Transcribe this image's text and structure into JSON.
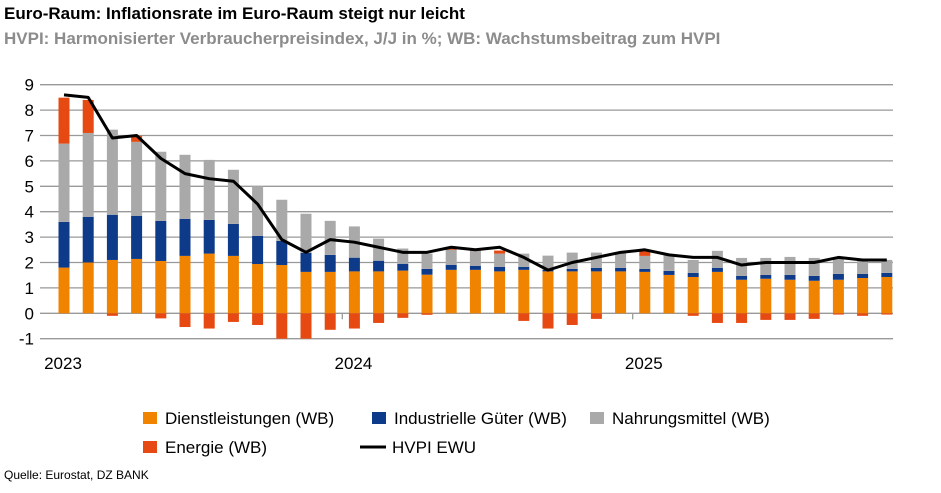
{
  "header": {
    "title": "Euro-Raum: Inflationsrate im Euro-Raum steigt nur leicht",
    "subtitle": "HVPI: Harmonisierter Verbraucherpreisindex, J/J in %; WB: Wachstumsbeitrag zum HVPI"
  },
  "source": "Quelle: Eurostat, DZ BANK",
  "chart_data": {
    "type": "bar",
    "stacked": true,
    "x_start": "2023-01",
    "x_end": "2025-11",
    "x_tick_labels": [
      "2023",
      "2024",
      "2025"
    ],
    "ylim": [
      -1,
      9
    ],
    "y_ticks": [
      "-1",
      "0",
      "1",
      "2",
      "3",
      "4",
      "5",
      "6",
      "7",
      "8",
      "9"
    ],
    "grid": true,
    "legend_placement": "bottom",
    "series": [
      {
        "name": "Dienstleistungen (WB)",
        "kind": "bar",
        "color": "#F08300",
        "values": [
          1.8,
          2.0,
          2.1,
          2.14,
          2.06,
          2.26,
          2.35,
          2.26,
          1.94,
          1.9,
          1.63,
          1.63,
          1.65,
          1.65,
          1.68,
          1.52,
          1.71,
          1.71,
          1.65,
          1.71,
          1.65,
          1.65,
          1.65,
          1.65,
          1.63,
          1.51,
          1.43,
          1.63,
          1.32,
          1.36,
          1.32,
          1.28,
          1.32,
          1.39,
          1.43
        ]
      },
      {
        "name": "Industrielle Güter (WB)",
        "kind": "bar",
        "color": "#0E3A8A",
        "values": [
          1.8,
          1.8,
          1.78,
          1.7,
          1.58,
          1.46,
          1.33,
          1.26,
          1.11,
          0.95,
          0.75,
          0.67,
          0.54,
          0.42,
          0.27,
          0.23,
          0.2,
          0.16,
          0.18,
          0.12,
          0.06,
          0.1,
          0.14,
          0.14,
          0.12,
          0.16,
          0.16,
          0.16,
          0.15,
          0.15,
          0.19,
          0.19,
          0.23,
          0.16,
          0.16
        ]
      },
      {
        "name": "Nahrungsmittel (WB)",
        "kind": "bar",
        "color": "#A9A9A9",
        "values": [
          3.08,
          3.3,
          3.35,
          2.91,
          2.72,
          2.52,
          2.36,
          2.13,
          1.95,
          1.62,
          1.54,
          1.34,
          1.23,
          0.87,
          0.6,
          0.6,
          0.59,
          0.59,
          0.52,
          0.52,
          0.56,
          0.64,
          0.6,
          0.58,
          0.51,
          0.63,
          0.51,
          0.67,
          0.71,
          0.67,
          0.71,
          0.71,
          0.59,
          0.55,
          0.51
        ]
      },
      {
        "name": "Energie (WB)",
        "kind": "bar",
        "color": "#E64A12",
        "values": [
          1.81,
          1.3,
          -0.1,
          0.24,
          -0.2,
          -0.54,
          -0.6,
          -0.34,
          -0.46,
          -1.0,
          -1.0,
          -0.65,
          -0.6,
          -0.38,
          -0.18,
          -0.06,
          0.04,
          0.04,
          0.12,
          -0.3,
          -0.6,
          -0.46,
          -0.22,
          0.0,
          0.2,
          0.0,
          -0.1,
          -0.38,
          -0.38,
          -0.26,
          -0.26,
          -0.22,
          -0.05,
          -0.1,
          -0.05
        ]
      },
      {
        "name": "HVPI EWU",
        "kind": "line",
        "color": "#000000",
        "values": [
          8.6,
          8.5,
          6.9,
          7.0,
          6.1,
          5.5,
          5.3,
          5.2,
          4.3,
          2.9,
          2.4,
          2.9,
          2.8,
          2.6,
          2.4,
          2.4,
          2.6,
          2.5,
          2.6,
          2.2,
          1.7,
          2.0,
          2.2,
          2.4,
          2.5,
          2.3,
          2.2,
          2.2,
          1.9,
          2.0,
          2.0,
          2.0,
          2.2,
          2.1,
          2.1
        ]
      }
    ]
  }
}
